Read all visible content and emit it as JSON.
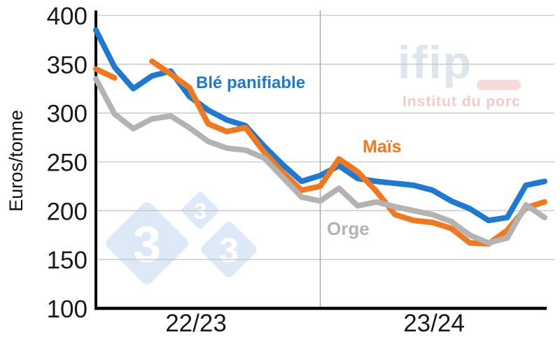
{
  "chart_data": {
    "type": "line",
    "title": "",
    "ylabel": "Euros/tonne",
    "ylim": [
      100,
      400
    ],
    "yticks": [
      400,
      350,
      300,
      250,
      200,
      150,
      100
    ],
    "x_axis": {
      "season_labels": [
        "22/23",
        "23/24"
      ],
      "n_points": 25,
      "season_divider_index": 12,
      "note": "monthly points, two marketing seasons"
    },
    "grid": true,
    "legend_position": "inline-annotations",
    "series": [
      {
        "name": "Blé panifiable",
        "color": "#1e79d2",
        "values": [
          385,
          347,
          325,
          338,
          343,
          317,
          303,
          293,
          287,
          266,
          247,
          230,
          236,
          246,
          233,
          230,
          228,
          226,
          221,
          210,
          202,
          190,
          193,
          226,
          230
        ]
      },
      {
        "name": "Maïs",
        "color": "#f0791e",
        "values": [
          345,
          336,
          null,
          353,
          340,
          326,
          289,
          281,
          285,
          260,
          239,
          221,
          225,
          253,
          240,
          220,
          196,
          190,
          188,
          182,
          167,
          166,
          180,
          203,
          209
        ]
      },
      {
        "name": "Orge",
        "color": "#b3b3b3",
        "values": [
          335,
          299,
          284,
          294,
          297,
          285,
          271,
          264,
          262,
          254,
          234,
          214,
          210,
          223,
          205,
          209,
          204,
          200,
          196,
          189,
          175,
          167,
          172,
          206,
          193
        ]
      }
    ]
  },
  "annotations": {
    "ble_label": "Blé panifiable",
    "mais_label": "Maïs",
    "orge_label": "Orge"
  },
  "watermarks": {
    "ifip_logo": "ifip",
    "ifip_tagline": "Institut du porc",
    "diamond_digit": "3"
  },
  "colors": {
    "ble": "#1e79d2",
    "mais": "#f0791e",
    "orge": "#b3b3b3",
    "gridline": "#c6c6c6",
    "divider": "#a9a9a9",
    "axis": "#000000",
    "ifip_text": "#dfe5ed",
    "ifip_pink": "#f9dada",
    "ifip_tagline_pink": "#f7caca",
    "diamond": "#dde9f6"
  }
}
